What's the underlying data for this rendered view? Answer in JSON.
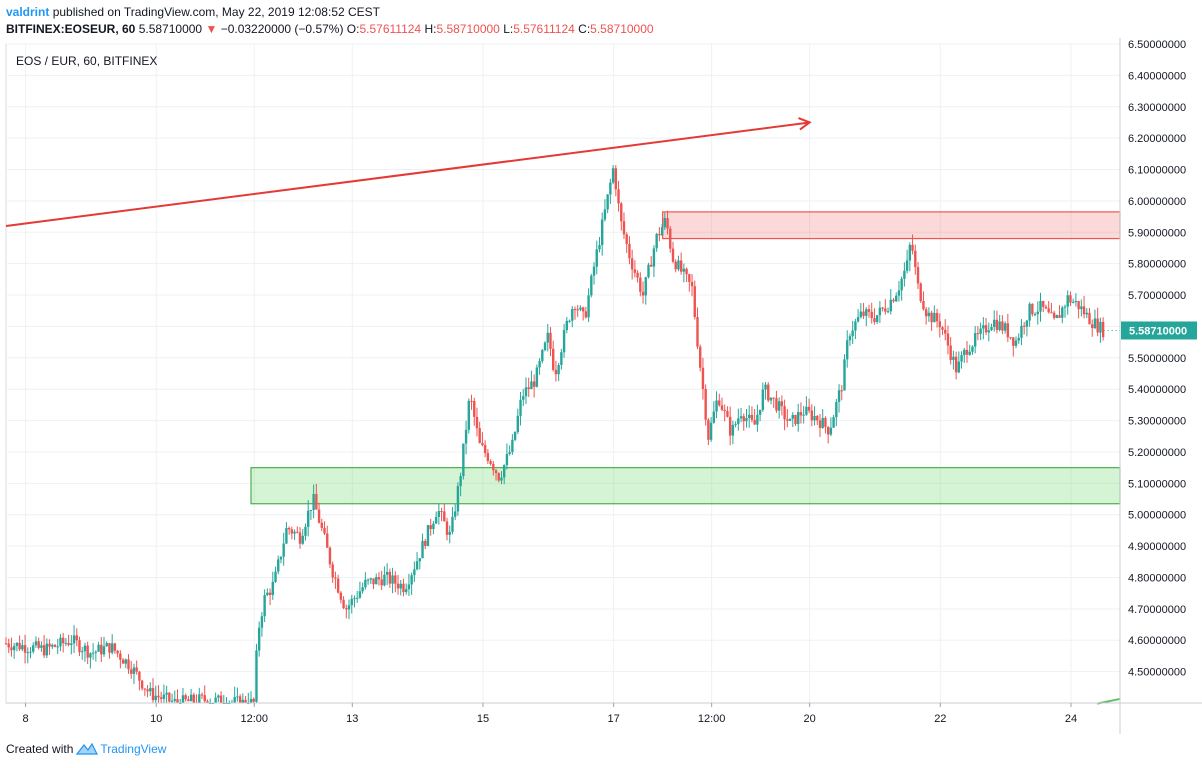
{
  "header": {
    "author": "valdrint",
    "published_text": "published on TradingView.com, May 22, 2019 12:08:52 CEST",
    "symbol": "BITFINEX:EOSEUR, 60",
    "last": "5.58710000",
    "arrow": "▼",
    "change": "−0.03220000 (−0.57%)",
    "o_label": "O:",
    "o_value": "5.57611124",
    "h_label": "H:",
    "h_value": "5.58710000",
    "l_label": "L:",
    "l_value": "5.57611124",
    "c_label": "C:",
    "c_value": "5.58710000"
  },
  "footer": {
    "created_with": "Created with",
    "brand": "TradingView",
    "brand_icon": "tradingview-logo-icon"
  },
  "chart_data": {
    "type": "candlestick",
    "title": "EOS / EUR, 60, BITFINEX",
    "y_axis_side": "right",
    "ylim": [
      4.4,
      6.5
    ],
    "y_ticks": [
      4.5,
      4.6,
      4.7,
      4.8,
      4.9,
      5.0,
      5.1,
      5.2,
      5.3,
      5.4,
      5.5,
      5.6,
      5.7,
      5.8,
      5.9,
      6.0,
      6.1,
      6.2,
      6.3,
      6.4,
      6.5
    ],
    "y_tick_labels": [
      "4.50000000",
      "4.60000000",
      "4.70000000",
      "4.80000000",
      "4.90000000",
      "5.00000000",
      "5.10000000",
      "5.20000000",
      "5.30000000",
      "5.40000000",
      "5.50000000",
      "5.60000000",
      "5.70000000",
      "5.80000000",
      "5.90000000",
      "6.00000000",
      "6.10000000",
      "6.20000000",
      "6.30000000",
      "6.40000000",
      "6.50000000"
    ],
    "x_ticks": [
      {
        "t": 8.0,
        "label": "8"
      },
      {
        "t": 10.0,
        "label": "10"
      },
      {
        "t": 11.5,
        "label": "12:00"
      },
      {
        "t": 13.0,
        "label": "13"
      },
      {
        "t": 15.0,
        "label": "15"
      },
      {
        "t": 17.0,
        "label": "17"
      },
      {
        "t": 18.5,
        "label": "12:00"
      },
      {
        "t": 20.0,
        "label": "20"
      },
      {
        "t": 22.0,
        "label": "22"
      },
      {
        "t": 24.0,
        "label": "24"
      }
    ],
    "xlim": [
      7.7,
      24.75
    ],
    "grid": true,
    "last_price": 5.5871,
    "last_price_label": "5.58710000",
    "up_color": "#26a69a",
    "down_color": "#ef5350",
    "price_path": [
      [
        7.7,
        4.59
      ],
      [
        8.3,
        4.57
      ],
      [
        8.7,
        4.6
      ],
      [
        9.0,
        4.56
      ],
      [
        9.3,
        4.58
      ],
      [
        9.6,
        4.52
      ],
      [
        9.9,
        4.43
      ],
      [
        10.3,
        4.4
      ],
      [
        10.7,
        4.41
      ],
      [
        11.3,
        4.4
      ],
      [
        11.5,
        4.4
      ],
      [
        11.55,
        4.62
      ],
      [
        11.65,
        4.73
      ],
      [
        11.8,
        4.78
      ],
      [
        12.0,
        4.96
      ],
      [
        12.2,
        4.93
      ],
      [
        12.4,
        5.05
      ],
      [
        12.55,
        4.94
      ],
      [
        12.7,
        4.82
      ],
      [
        12.9,
        4.7
      ],
      [
        13.2,
        4.78
      ],
      [
        13.5,
        4.8
      ],
      [
        13.8,
        4.77
      ],
      [
        14.0,
        4.86
      ],
      [
        14.3,
        5.02
      ],
      [
        14.5,
        4.93
      ],
      [
        14.65,
        5.12
      ],
      [
        14.8,
        5.38
      ],
      [
        14.95,
        5.22
      ],
      [
        15.1,
        5.18
      ],
      [
        15.25,
        5.12
      ],
      [
        15.45,
        5.22
      ],
      [
        15.6,
        5.38
      ],
      [
        15.8,
        5.43
      ],
      [
        16.0,
        5.57
      ],
      [
        16.1,
        5.45
      ],
      [
        16.3,
        5.62
      ],
      [
        16.4,
        5.68
      ],
      [
        16.55,
        5.62
      ],
      [
        16.7,
        5.79
      ],
      [
        16.9,
        6.0
      ],
      [
        17.0,
        6.11
      ],
      [
        17.1,
        5.94
      ],
      [
        17.25,
        5.82
      ],
      [
        17.45,
        5.7
      ],
      [
        17.65,
        5.88
      ],
      [
        17.8,
        5.94
      ],
      [
        17.9,
        5.82
      ],
      [
        18.05,
        5.77
      ],
      [
        18.2,
        5.72
      ],
      [
        18.3,
        5.52
      ],
      [
        18.45,
        5.25
      ],
      [
        18.6,
        5.38
      ],
      [
        18.8,
        5.26
      ],
      [
        18.95,
        5.33
      ],
      [
        19.15,
        5.28
      ],
      [
        19.3,
        5.4
      ],
      [
        19.5,
        5.35
      ],
      [
        19.7,
        5.29
      ],
      [
        19.9,
        5.33
      ],
      [
        20.1,
        5.31
      ],
      [
        20.3,
        5.27
      ],
      [
        20.5,
        5.42
      ],
      [
        20.6,
        5.58
      ],
      [
        20.8,
        5.64
      ],
      [
        21.0,
        5.63
      ],
      [
        21.2,
        5.67
      ],
      [
        21.35,
        5.72
      ],
      [
        21.5,
        5.8
      ],
      [
        21.55,
        5.88
      ],
      [
        21.65,
        5.73
      ],
      [
        21.8,
        5.64
      ],
      [
        22.0,
        5.61
      ],
      [
        22.1,
        5.55
      ],
      [
        22.25,
        5.46
      ],
      [
        22.4,
        5.53
      ],
      [
        22.6,
        5.57
      ],
      [
        22.8,
        5.62
      ],
      [
        23.0,
        5.59
      ],
      [
        23.15,
        5.55
      ],
      [
        23.35,
        5.65
      ],
      [
        23.55,
        5.66
      ],
      [
        23.75,
        5.61
      ],
      [
        23.95,
        5.69
      ],
      [
        24.1,
        5.67
      ],
      [
        24.3,
        5.62
      ],
      [
        24.5,
        5.587
      ]
    ],
    "annotations": [
      {
        "type": "trend-arrow",
        "name": "resistance-trendline",
        "color": "#e53935",
        "from": [
          7.7,
          5.92
        ],
        "to": [
          20.0,
          6.25
        ]
      },
      {
        "type": "zone",
        "name": "resistance-zone",
        "color": "#ef5350",
        "fill": "rgba(239,83,80,0.22)",
        "x_from": 17.75,
        "x_to": 24.75,
        "y_from": 5.88,
        "y_to": 5.965
      },
      {
        "type": "zone",
        "name": "support-zone",
        "color": "#4caf50",
        "fill": "rgba(102,217,102,0.28)",
        "x_from": 11.45,
        "x_to": 24.75,
        "y_from": 5.035,
        "y_to": 5.15
      },
      {
        "type": "trend-line",
        "name": "bottom-right-support-line",
        "color": "#66bb6a",
        "from": [
          24.4,
          4.398
        ],
        "to": [
          24.75,
          4.413
        ]
      }
    ]
  }
}
